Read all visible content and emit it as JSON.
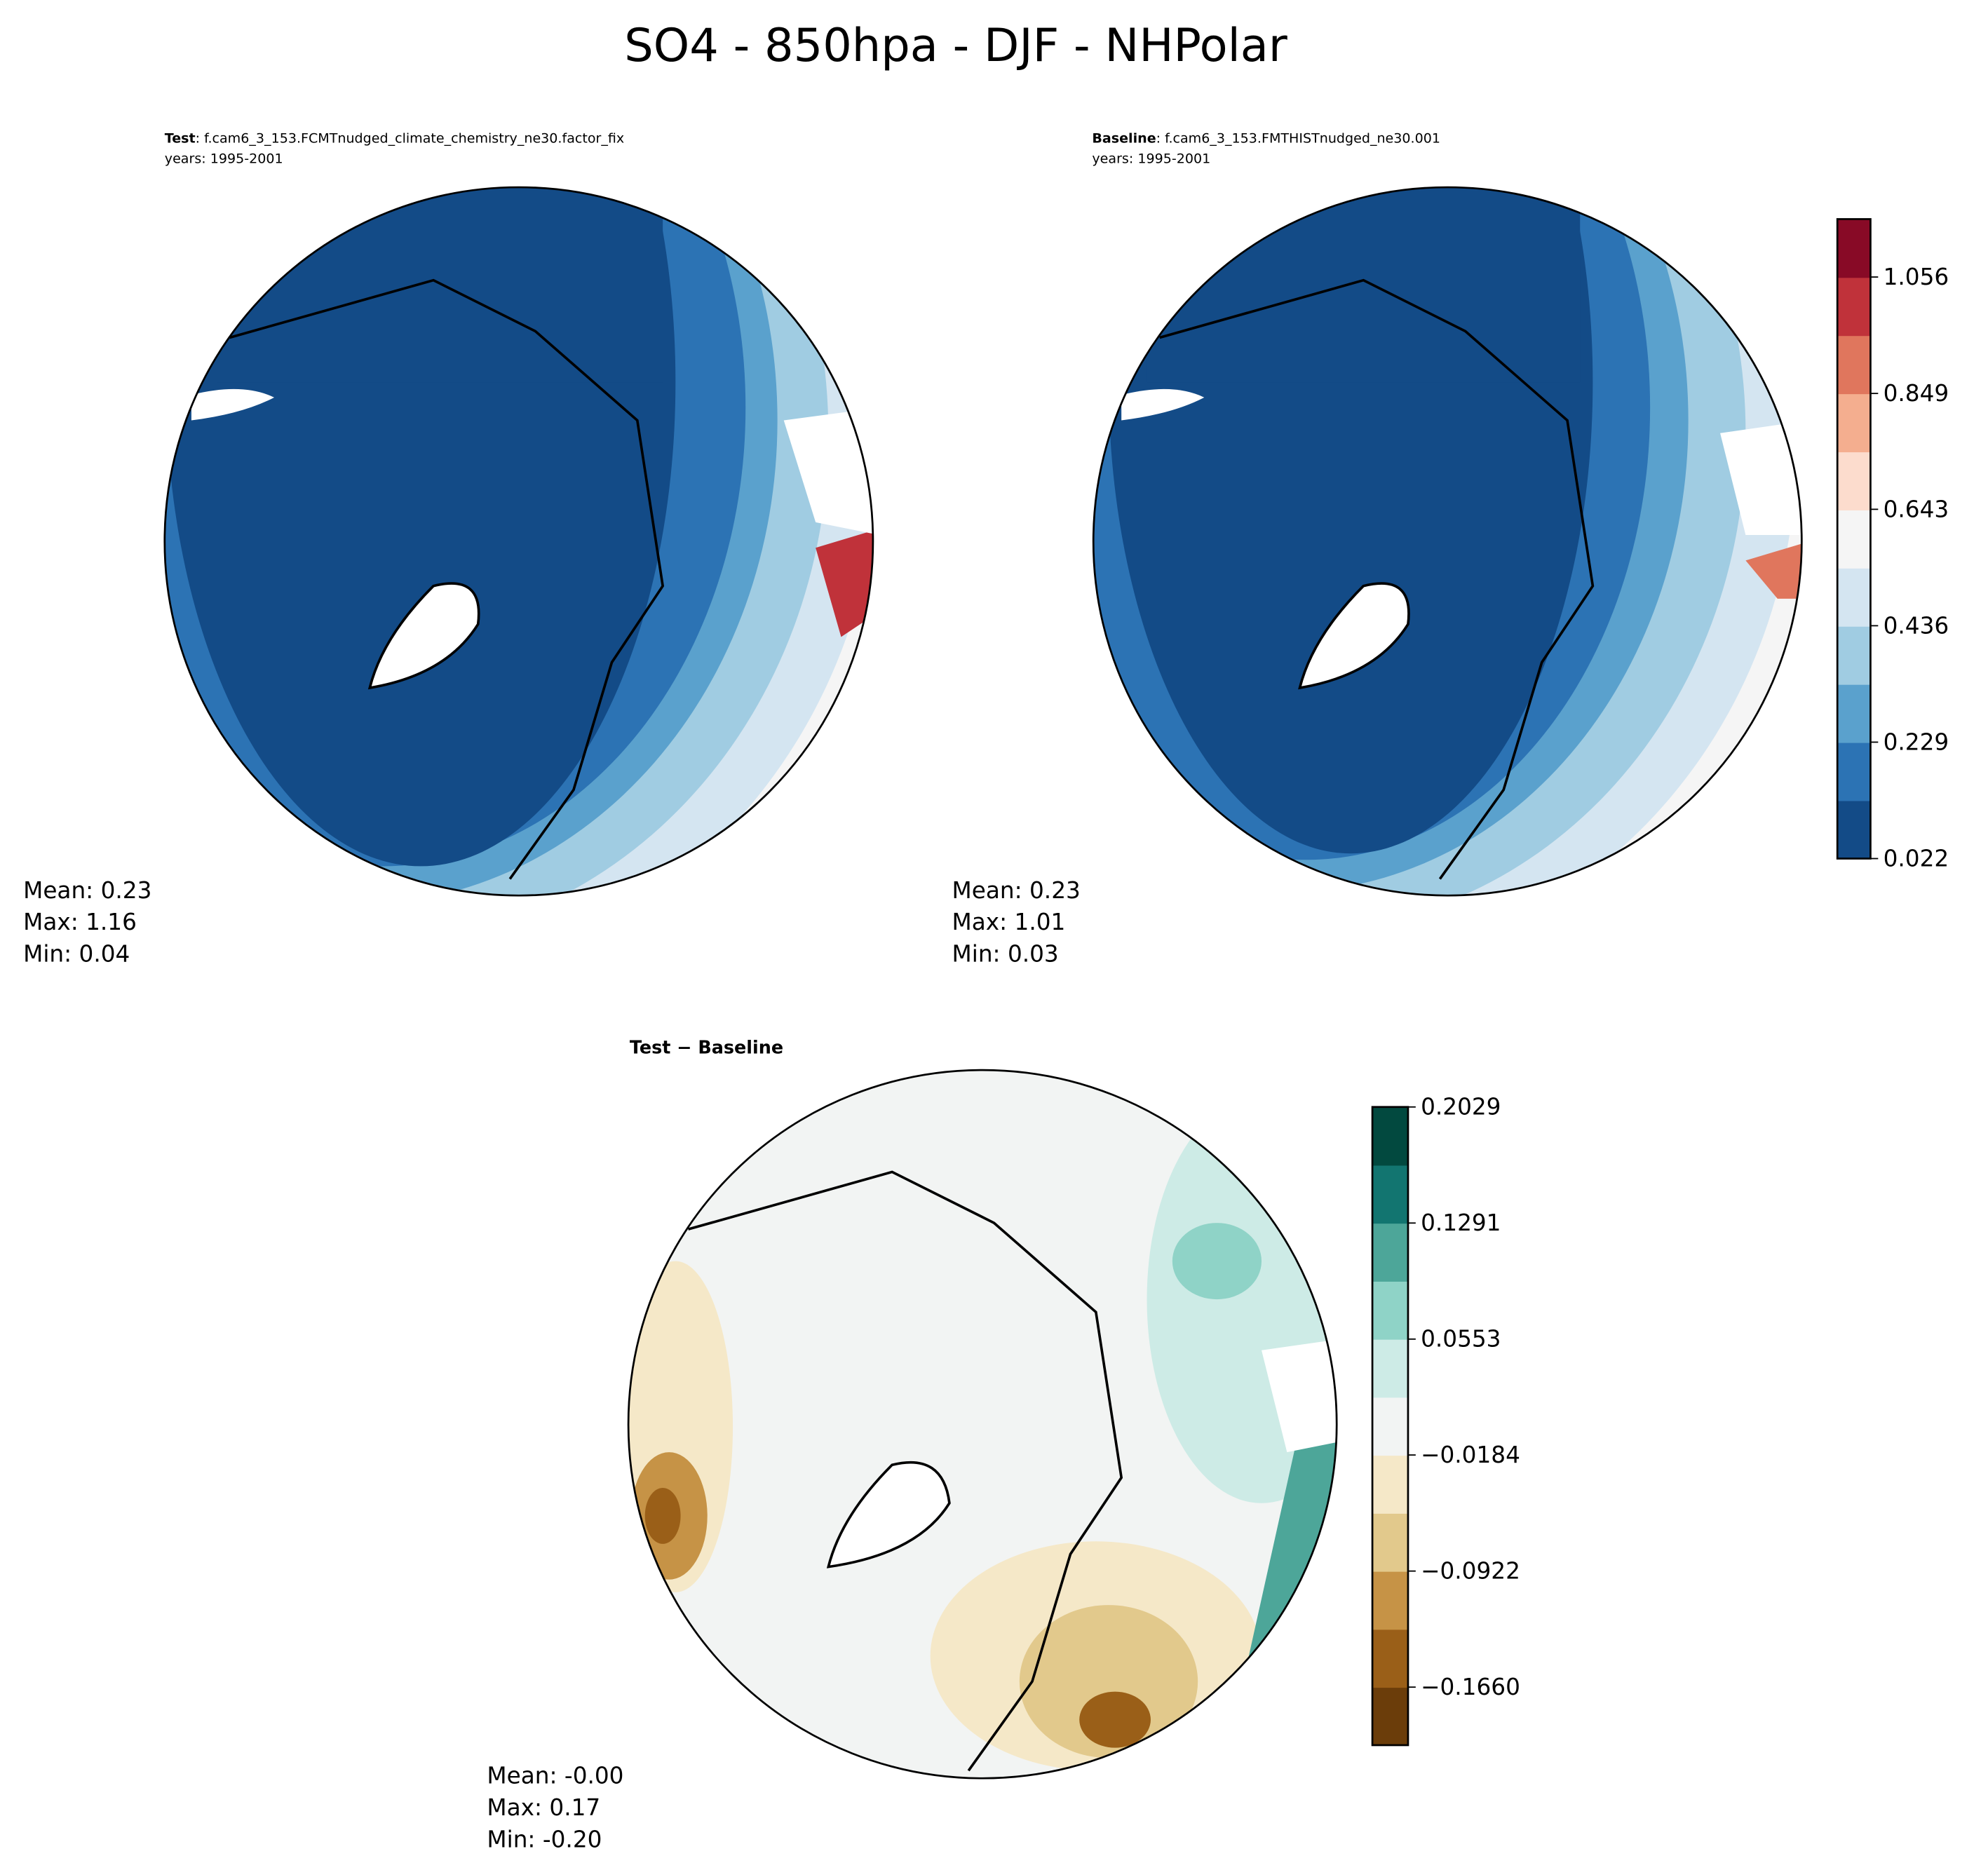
{
  "chart_data": [
    {
      "type": "heatmap",
      "title": "SO4 - 850hpa - DJF - NHPolar",
      "panel": "test",
      "label_bold": "Test",
      "label_rest": ": f.cam6_3_153.FCMTnudged_climate_chemistry_ne30.factor_fix",
      "years": "years: 1995-2001",
      "stats": {
        "mean": "Mean:  0.23",
        "max": "Max:  1.16",
        "min": "Min:  0.04"
      }
    },
    {
      "type": "heatmap",
      "panel": "baseline",
      "label_bold": "Baseline",
      "label_rest": ": f.cam6_3_153.FMTHISTnudged_ne30.001",
      "years": "years: 1995-2001",
      "stats": {
        "mean": "Mean:  0.23",
        "max": "Max:  1.01",
        "min": "Min:  0.03"
      },
      "colorbar": {
        "range": [
          0.022,
          1.159
        ],
        "ticks": [
          0.022,
          0.229,
          0.436,
          0.643,
          0.849,
          1.056
        ],
        "tick_labels": [
          "0.022",
          "0.229",
          "0.436",
          "0.643",
          "0.849",
          "1.056"
        ],
        "colors": [
          "#134b87",
          "#2c73b4",
          "#5aa1cd",
          "#a0cce2",
          "#d4e5f1",
          "#f5f5f5",
          "#fcdccd",
          "#f4ae8f",
          "#e0765d",
          "#c0323a",
          "#880a26"
        ]
      }
    },
    {
      "type": "heatmap",
      "panel": "difference",
      "label": "Test − Baseline",
      "stats": {
        "mean": "Mean: -0.00",
        "max": "Max:  0.17",
        "min": "Min: -0.20"
      },
      "colorbar": {
        "range": [
          -0.2029,
          0.2029
        ],
        "ticks": [
          -0.166,
          -0.0922,
          -0.0184,
          0.0553,
          0.1291,
          0.2029
        ],
        "tick_labels": [
          "−0.1660",
          "−0.0922",
          "−0.0184",
          "0.0553",
          "0.1291",
          "0.2029"
        ],
        "colors": [
          "#6b3d0a",
          "#9a5f18",
          "#c69346",
          "#e2c98c",
          "#f5e8c8",
          "#f2f4f3",
          "#cdebe6",
          "#8fd3c7",
          "#4da699",
          "#127570",
          "#02493f"
        ]
      }
    }
  ]
}
